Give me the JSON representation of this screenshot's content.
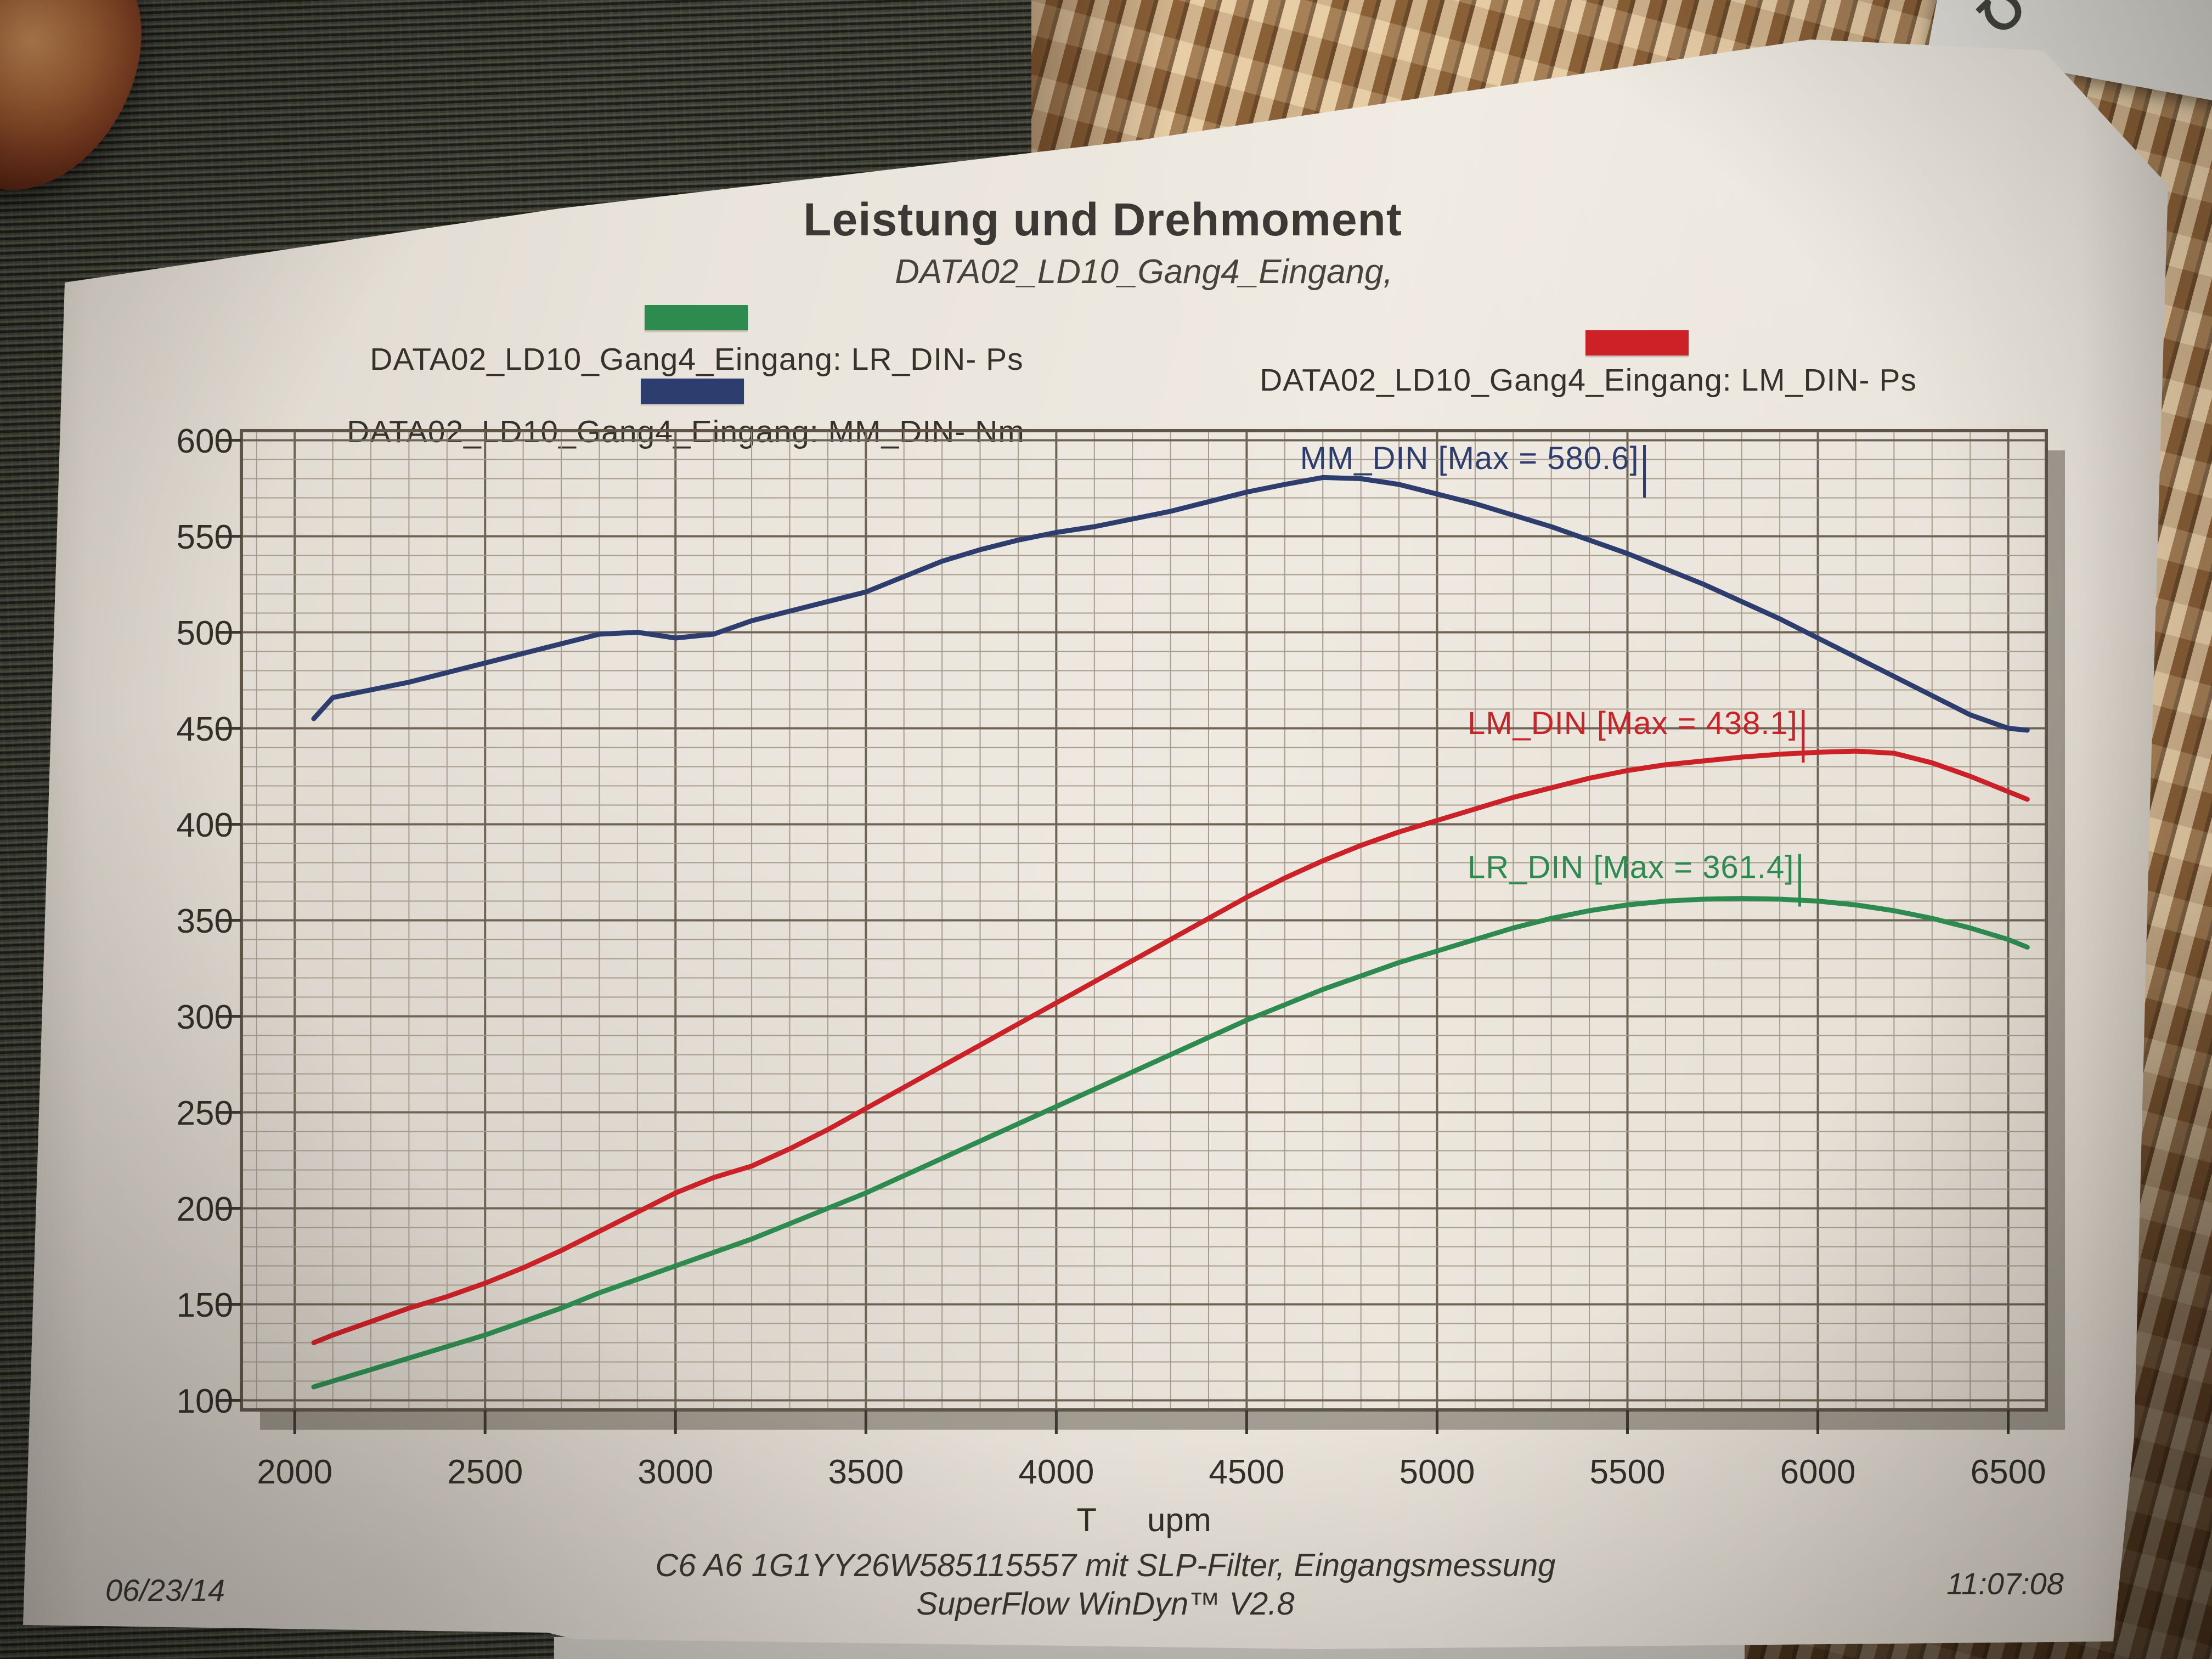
{
  "header": {
    "title": "Leistung und Drehmoment",
    "subtitle": "DATA02_LD10_Gang4_Eingang,"
  },
  "legend": [
    {
      "series": "LR_DIN",
      "label": "DATA02_LD10_Gang4_Eingang: LR_DIN- Ps",
      "color": "#2e8b50"
    },
    {
      "series": "LM_DIN",
      "label": "DATA02_LD10_Gang4_Eingang: LM_DIN- Ps",
      "color": "#cd2128"
    },
    {
      "series": "MM_DIN",
      "label": "DATA02_LD10_Gang4_Eingang: MM_DIN- Nm",
      "color": "#2d3d6e"
    }
  ],
  "footer": {
    "caption_line1": "C6 A6 1G1YY26W585115557 mit SLP-Filter, Eingangsmessung",
    "caption_line2": "SuperFlow WinDyn™ V2.8",
    "date": "06/23/14",
    "time": "11:07:08"
  },
  "background": {
    "scrap_glyph": "℧"
  },
  "chart_data": {
    "type": "line",
    "title": "Leistung und Drehmoment",
    "subtitle": "DATA02_LD10_Gang4_Eingang,",
    "xlabel_t": "T",
    "xlabel_unit": "upm",
    "xlim": [
      1860,
      6600
    ],
    "ylim": [
      95,
      605
    ],
    "x_ticks": [
      2000,
      2500,
      3000,
      3500,
      4000,
      4500,
      5000,
      5500,
      6000,
      6500
    ],
    "y_ticks": [
      600,
      550,
      500,
      450,
      400,
      350,
      300,
      250,
      200,
      150,
      100
    ],
    "grid": {
      "on": true,
      "minor_x": 100,
      "minor_y": 10,
      "major_x": 500,
      "major_y": 50
    },
    "legend_position": "top",
    "x": [
      2050,
      2100,
      2200,
      2300,
      2400,
      2500,
      2600,
      2700,
      2800,
      2900,
      3000,
      3100,
      3200,
      3300,
      3400,
      3500,
      3600,
      3700,
      3800,
      3900,
      4000,
      4100,
      4200,
      4300,
      4400,
      4500,
      4600,
      4700,
      4800,
      4900,
      5000,
      5100,
      5200,
      5300,
      5400,
      5500,
      5600,
      5700,
      5800,
      5900,
      6000,
      6100,
      6200,
      6300,
      6400,
      6500,
      6550
    ],
    "series": [
      {
        "name": "MM_DIN",
        "unit": "Nm",
        "color": "#2d3d6e",
        "max": 580.6,
        "values": [
          455,
          466,
          470,
          474,
          479,
          484,
          489,
          494,
          499,
          500,
          497,
          499,
          506,
          511,
          516,
          521,
          529,
          537,
          543,
          548,
          552,
          555,
          559,
          563,
          568,
          573,
          577,
          580.6,
          580,
          577,
          572,
          567,
          561,
          555,
          548,
          541,
          533,
          525,
          516,
          507,
          497,
          487,
          477,
          467,
          457,
          450,
          449
        ]
      },
      {
        "name": "LM_DIN",
        "unit": "Ps",
        "color": "#cd2128",
        "max": 438.1,
        "values": [
          130,
          134,
          141,
          148,
          154,
          161,
          169,
          178,
          188,
          198,
          208,
          216,
          222,
          231,
          241,
          252,
          263,
          274,
          285,
          296,
          307,
          318,
          329,
          340,
          351,
          362,
          372,
          381,
          389,
          396,
          402,
          408,
          414,
          419,
          424,
          428,
          431,
          433,
          435,
          436.5,
          437.5,
          438.1,
          437,
          432,
          425,
          417,
          413
        ]
      },
      {
        "name": "LR_DIN",
        "unit": "Ps",
        "color": "#2e8b50",
        "max": 361.4,
        "values": [
          107,
          110,
          116,
          122,
          128,
          134,
          141,
          148,
          156,
          163,
          170,
          177,
          184,
          192,
          200,
          208,
          217,
          226,
          235,
          244,
          253,
          262,
          271,
          280,
          289,
          298,
          306,
          314,
          321,
          328,
          334,
          340,
          346,
          351,
          355,
          358,
          360,
          361,
          361.4,
          361,
          360,
          358,
          355,
          351,
          346,
          340,
          336
        ]
      }
    ],
    "annotations": [
      {
        "text": "MM_DIN [Max = 580.6]",
        "x": 4640,
        "y": 585,
        "color": "#2d3d6e"
      },
      {
        "text": "LM_DIN [Max = 438.1]",
        "x": 5080,
        "y": 447,
        "color": "#cd2128"
      },
      {
        "text": "LR_DIN [Max = 361.4]",
        "x": 5080,
        "y": 372,
        "color": "#2e8b50"
      }
    ]
  }
}
